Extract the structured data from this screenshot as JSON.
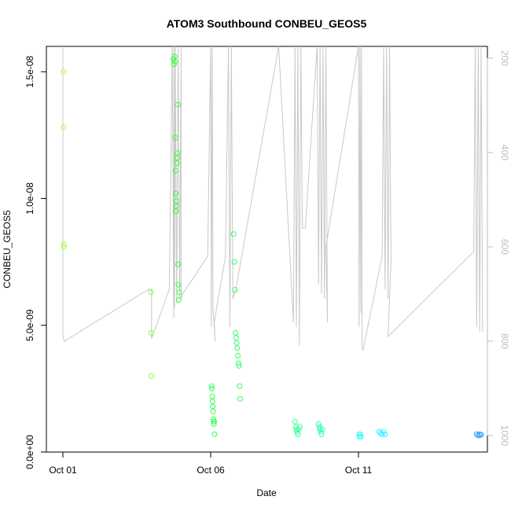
{
  "chart_data": {
    "type": "scatter",
    "title": "ATOM3 Southbound CONBEU_GEOS5",
    "xlabel": "Date",
    "ylabel": "CONBEU_GEOS5",
    "x_tick_labels": [
      "Oct 01",
      "Oct 06",
      "Oct 11"
    ],
    "x_tick_values_days": [
      0,
      5,
      10
    ],
    "xlim_days": [
      -0.7,
      14.5
    ],
    "ylim": [
      0,
      1.6e-08
    ],
    "y_tick_values": [
      0,
      5e-09,
      1e-08,
      1.5e-08
    ],
    "y_tick_labels": [
      "0.0e+00",
      "5.0e-09",
      "1.0e-08",
      "1.5e-08"
    ],
    "secondary_axis": {
      "label": "",
      "color": "#bdbdbd",
      "ylim": [
        1035,
        175
      ],
      "tick_values": [
        200,
        400,
        600,
        800,
        1000
      ],
      "tick_labels": [
        "200",
        "400",
        "600",
        "800",
        "1000"
      ]
    },
    "grid": false,
    "series": [
      {
        "marker": "open-circle",
        "x": [
          0.02,
          0.02,
          0.03,
          0.03,
          2.98,
          2.99,
          3.0,
          3.74,
          3.76,
          3.78,
          3.79,
          3.8,
          3.81,
          3.82,
          3.83,
          3.84,
          3.85,
          3.86,
          3.87,
          3.88,
          3.89,
          3.9,
          3.91,
          3.92,
          3.94,
          5.03,
          5.04,
          5.05,
          5.06,
          5.07,
          5.08,
          5.09,
          5.1,
          5.11,
          5.12,
          5.13,
          5.78,
          5.8,
          5.82,
          5.84,
          5.86,
          5.88,
          5.9,
          5.92,
          5.94,
          5.96,
          5.98,
          6.0,
          7.85,
          7.88,
          7.9,
          7.92,
          7.95,
          7.98,
          8.02,
          8.65,
          8.68,
          8.7,
          8.72,
          8.75,
          8.78,
          10.02,
          10.04,
          10.06,
          10.08,
          10.7,
          10.75,
          10.8,
          10.85,
          10.9,
          14.0,
          14.05,
          14.1,
          14.15
        ],
        "y": [
          1.5e-08,
          1.28e-08,
          8.2e-09,
          8.1e-09,
          6.3e-09,
          4.7e-09,
          3e-09,
          1.55e-08,
          1.53e-08,
          1.56e-08,
          1.54e-08,
          1.24e-08,
          1.11e-08,
          1.02e-08,
          9.5e-09,
          9.7e-09,
          9.9e-09,
          1.14e-08,
          1.16e-08,
          1.18e-08,
          1.37e-08,
          7.4e-09,
          6.6e-09,
          6e-09,
          6.3e-09,
          2.6e-09,
          2.5e-09,
          2.2e-09,
          2e-09,
          1.8e-09,
          1.6e-09,
          1.3e-09,
          1.2e-09,
          1.1e-09,
          1.2e-09,
          7e-10,
          8.6e-09,
          7.5e-09,
          6.4e-09,
          4.7e-09,
          4.5e-09,
          4.3e-09,
          4.1e-09,
          3.8e-09,
          3.5e-09,
          3.4e-09,
          2.6e-09,
          2.1e-09,
          1.2e-09,
          1e-09,
          9e-10,
          8e-10,
          7e-10,
          9e-10,
          1e-09,
          1.1e-09,
          1e-09,
          9e-10,
          8e-10,
          7e-10,
          9e-10,
          7e-10,
          6e-10,
          7e-10,
          6e-10,
          8e-10,
          7.5e-10,
          7e-10,
          8e-10,
          7e-10,
          7e-10,
          6.5e-10,
          7e-10,
          6.8e-10
        ],
        "colors": [
          "#a6ff33",
          "#a6ff33",
          "#a6ff33",
          "#a6ff33",
          "#7cff33",
          "#7cff33",
          "#7cff33",
          "#33ff33",
          "#33ff33",
          "#33ff33",
          "#33ff33",
          "#33ff33",
          "#33ff33",
          "#33ff33",
          "#33ff33",
          "#33ff33",
          "#33ff33",
          "#33ff33",
          "#33ff33",
          "#33ff33",
          "#33ff33",
          "#33ff33",
          "#33ff33",
          "#33ff33",
          "#33ff33",
          "#33ff55",
          "#33ff55",
          "#33ff55",
          "#33ff55",
          "#33ff55",
          "#33ff55",
          "#33ff55",
          "#33ff55",
          "#33ff55",
          "#33ff55",
          "#33ff55",
          "#33ff66",
          "#33ff66",
          "#33ff66",
          "#33ff66",
          "#33ff66",
          "#33ff66",
          "#33ff66",
          "#33ff66",
          "#33ff66",
          "#33ff66",
          "#33ff66",
          "#33ff66",
          "#33ff99",
          "#33ff99",
          "#33ff99",
          "#33ff99",
          "#33ff99",
          "#33ff99",
          "#33ff99",
          "#33ffaa",
          "#33ffaa",
          "#33ffaa",
          "#33ffaa",
          "#33ffaa",
          "#33ffaa",
          "#33ffee",
          "#33ffee",
          "#33ffee",
          "#33ffee",
          "#33eeff",
          "#33eeff",
          "#33eeff",
          "#33eeff",
          "#33eeff",
          "#1a99ff",
          "#1a99ff",
          "#1a99ff",
          "#1a99ff"
        ]
      }
    ],
    "pressure_line": {
      "color": "#c8c8c8",
      "x": [
        0.0,
        0.0,
        0.05,
        2.9,
        3.0,
        3.0,
        3.6,
        3.7,
        3.75,
        3.76,
        3.78,
        3.8,
        3.85,
        3.9,
        3.95,
        4.0,
        4.0,
        4.05,
        4.9,
        5.0,
        5.02,
        5.05,
        5.08,
        5.1,
        5.15,
        5.12,
        5.5,
        5.6,
        5.65,
        5.7,
        5.75,
        5.85,
        7.3,
        7.8,
        7.85,
        7.9,
        7.95,
        8.0,
        8.05,
        8.1,
        8.2,
        8.6,
        8.65,
        8.7,
        8.75,
        8.8,
        8.85,
        8.9,
        8.95,
        8.9,
        10.0,
        10.02,
        10.05,
        10.08,
        10.1,
        10.12,
        10.15,
        10.8,
        10.85,
        10.9,
        10.95,
        11.0,
        11.05,
        11.1,
        11.0,
        13.9,
        13.95,
        14.0,
        14.05,
        14.1,
        14.15,
        14.2
      ],
      "y": [
        175,
        790,
        800,
        690,
        690,
        795,
        690,
        175,
        750,
        175,
        730,
        175,
        720,
        175,
        710,
        175,
        710,
        700,
        620,
        175,
        770,
        175,
        740,
        750,
        800,
        760,
        620,
        175,
        770,
        175,
        710,
        690,
        175,
        760,
        175,
        770,
        175,
        810,
        175,
        560,
        560,
        175,
        680,
        175,
        700,
        175,
        710,
        175,
        760,
        600,
        175,
        770,
        175,
        740,
        175,
        810,
        820,
        620,
        175,
        690,
        175,
        710,
        175,
        630,
        790,
        610,
        175,
        770,
        175,
        780,
        175,
        780
      ]
    }
  }
}
